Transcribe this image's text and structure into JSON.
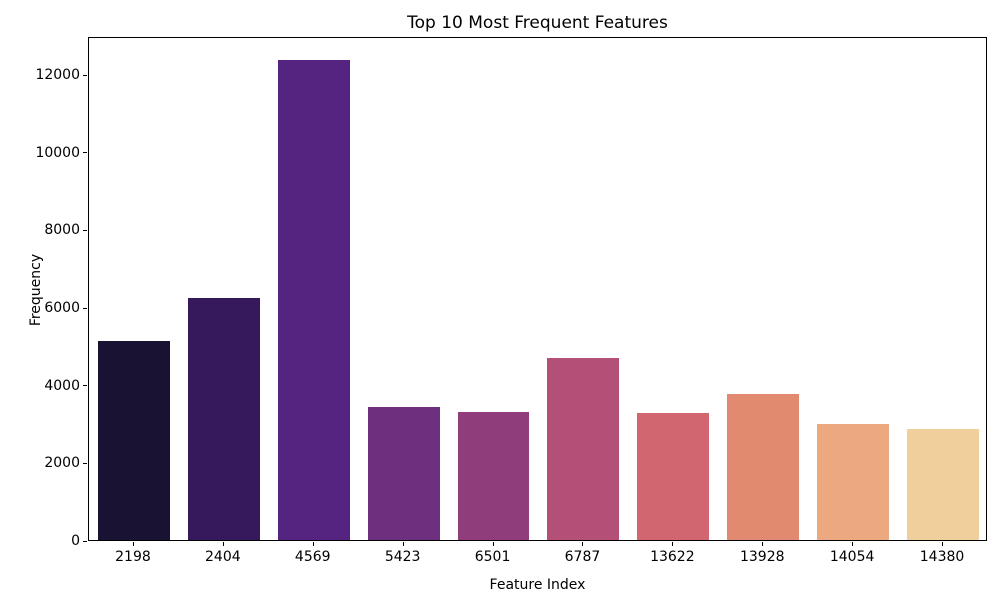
{
  "chart_data": {
    "type": "bar",
    "title": "Top 10 Most Frequent Features",
    "xlabel": "Feature Index",
    "ylabel": "Frequency",
    "categories": [
      "2198",
      "2404",
      "4569",
      "5423",
      "6501",
      "6787",
      "13622",
      "13928",
      "14054",
      "14380"
    ],
    "values": [
      5120,
      6220,
      12360,
      3420,
      3290,
      4690,
      3280,
      3770,
      3000,
      2850
    ],
    "bar_colors": [
      "#191233",
      "#36195d",
      "#552480",
      "#6f2f7f",
      "#8f3d7b",
      "#b44f78",
      "#d16570",
      "#e18a70",
      "#eca87e",
      "#f0cf9d"
    ],
    "yticks": [
      0,
      2000,
      4000,
      6000,
      8000,
      10000,
      12000
    ],
    "ylim": [
      0,
      12980
    ],
    "grid": false,
    "legend": null,
    "palette_name": "magma",
    "axis_color": "#000000",
    "background_color": "#ffffff"
  }
}
